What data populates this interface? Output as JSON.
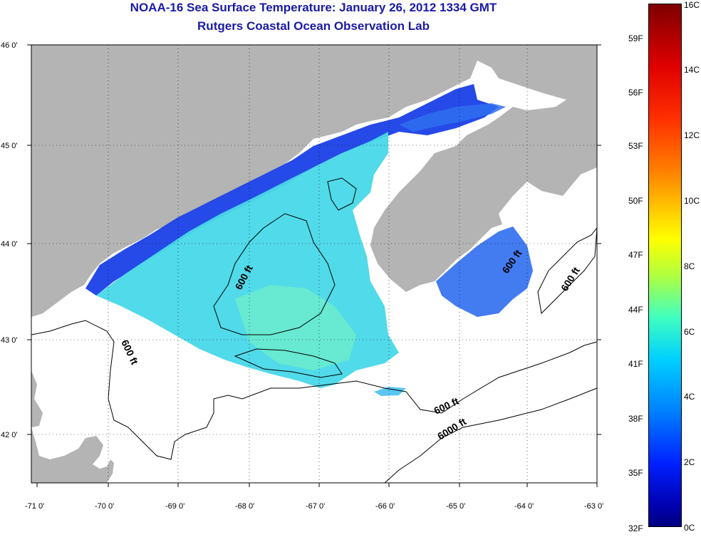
{
  "title": "NOAA-16 Sea Surface Temperature:  January 26, 2012 1334 GMT",
  "subtitle": "Rutgers Coastal Ocean Observation Lab",
  "map": {
    "lat_ticks": [
      "46 0'",
      "45 0'",
      "44 0'",
      "43 0'",
      "42 0'"
    ],
    "lon_ticks": [
      "-71 0'",
      "-70 0'",
      "-69 0'",
      "-68 0'",
      "-67 0'",
      "-66 0'",
      "-65 0'",
      "-64 0'",
      "-63 0'"
    ],
    "contour_labels": [
      "600 ft",
      "600 ft",
      "600 ft",
      "600 ft",
      "600 ft",
      "6000 ft"
    ],
    "colors": {
      "land": "#b4b4b4",
      "ocean_nodata": "#ffffff",
      "sst_mid": "#40d8f0",
      "sst_cold": "#1a30e0"
    }
  },
  "colorbar": {
    "fahrenheit": [
      "59F",
      "56F",
      "53F",
      "50F",
      "47F",
      "44F",
      "41F",
      "38F",
      "35F",
      "32F"
    ],
    "celsius": [
      "16C",
      "14C",
      "12C",
      "10C",
      "8C",
      "6C",
      "4C",
      "2C",
      "0C"
    ],
    "range_c": [
      0,
      16
    ],
    "range_f": [
      32,
      60.8
    ]
  }
}
